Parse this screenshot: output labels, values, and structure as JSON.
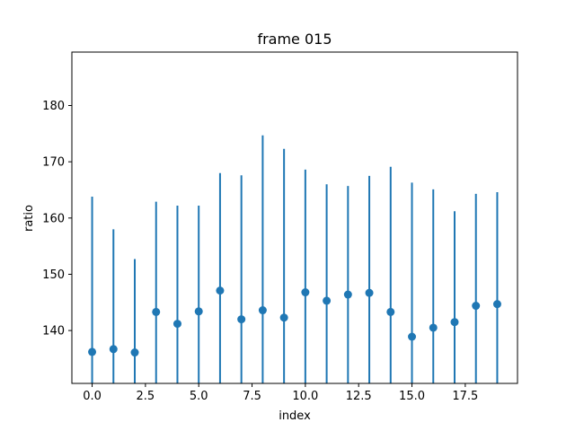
{
  "chart_data": {
    "type": "scatter",
    "title": "frame 015",
    "xlabel": "index",
    "ylabel": "ratio",
    "xlim": [
      -0.95,
      19.95
    ],
    "ylim": [
      130.6,
      189.5
    ],
    "grid": false,
    "color": "#1f77b4",
    "x_ticks": [
      0.0,
      2.5,
      5.0,
      7.5,
      10.0,
      12.5,
      15.0,
      17.5
    ],
    "x_tick_labels": [
      "0.0",
      "2.5",
      "5.0",
      "7.5",
      "10.0",
      "12.5",
      "15.0",
      "17.5"
    ],
    "y_ticks": [
      140,
      150,
      160,
      170,
      180
    ],
    "y_tick_labels": [
      "140",
      "150",
      "160",
      "170",
      "180"
    ],
    "series": [
      {
        "x": [
          0,
          1,
          2,
          3,
          4,
          5,
          6,
          7,
          8,
          9,
          10,
          11,
          12,
          13,
          14,
          15,
          16,
          17,
          18,
          19
        ],
        "y": [
          136.2,
          136.7,
          136.1,
          143.3,
          141.2,
          143.4,
          147.1,
          142.0,
          143.6,
          142.3,
          146.8,
          145.3,
          146.4,
          146.7,
          143.3,
          138.9,
          140.5,
          141.5,
          144.4,
          144.7
        ],
        "yerr_upper": [
          163.8,
          158.0,
          152.7,
          162.9,
          162.2,
          162.2,
          168.0,
          167.6,
          174.7,
          172.3,
          168.6,
          166.0,
          165.7,
          167.5,
          169.1,
          166.3,
          165.1,
          161.2,
          164.3,
          164.6
        ]
      }
    ]
  }
}
